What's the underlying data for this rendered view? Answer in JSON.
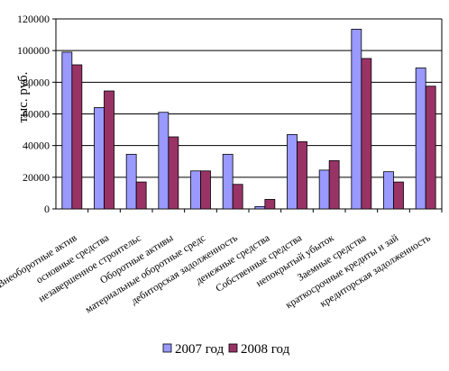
{
  "chart_data": {
    "type": "bar",
    "title": "",
    "xlabel": "",
    "ylabel": "тыс. руб.",
    "ylim": [
      0,
      120000
    ],
    "yticks": [
      0,
      20000,
      40000,
      60000,
      80000,
      100000,
      120000
    ],
    "ytick_labels": [
      "0",
      "20000",
      "40000",
      "60000",
      "80000",
      "100000",
      "120000"
    ],
    "grid": true,
    "legend_position": "bottom",
    "categories": [
      "Внеоборотные актив",
      "основные средства",
      "незавершенное строительс",
      "Оборотные активы",
      "материальные оборотные средс",
      "дебиторская задолженность",
      "денежные средства",
      "Собственные средства",
      "непокрытый убыток",
      "Заемные средства",
      "краткосрочные кредиты и зай",
      "кредиторская задолженность"
    ],
    "series": [
      {
        "name": "2007 год",
        "color": "#9999ff",
        "values": [
          99000,
          64000,
          34500,
          61000,
          24000,
          34500,
          1500,
          47000,
          24500,
          113500,
          23500,
          89000
        ]
      },
      {
        "name": "2008 год",
        "color": "#993366",
        "values": [
          91000,
          74500,
          17000,
          45500,
          24000,
          15500,
          6000,
          42500,
          30500,
          95000,
          17000,
          77500
        ]
      }
    ]
  }
}
